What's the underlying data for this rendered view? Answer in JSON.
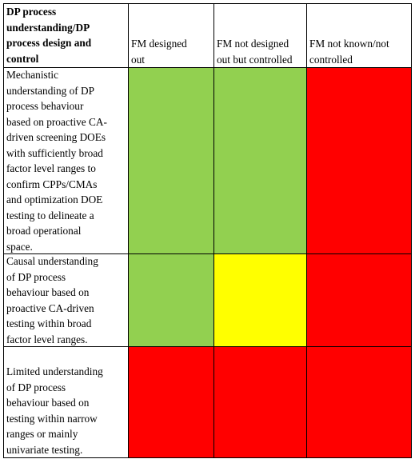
{
  "header": {
    "row_label": "DP process\nunderstanding/DP\nprocess design and\ncontrol",
    "columns": [
      "FM designed\nout",
      "FM not designed\nout but controlled",
      "FM not known/not\ncontrolled"
    ]
  },
  "rows": [
    {
      "label": "Mechanistic\nunderstanding of DP\nprocess behaviour\nbased on proactive CA-\ndriven screening DOEs\nwith sufficiently broad\nfactor level ranges to\nconfirm CPPs/CMAs\nand optimization DOE\ntesting to delineate a\nbroad operational\nspace.",
      "cells": [
        "green",
        "green",
        "red"
      ]
    },
    {
      "label": "Causal understanding\nof DP process\nbehaviour based on\nproactive CA-driven\ntesting within broad\nfactor level ranges.",
      "cells": [
        "green",
        "yellow",
        "red"
      ]
    },
    {
      "label": "Limited understanding\nof DP process\nbehaviour based on\ntesting within narrow\nranges or mainly\nunivariate testing.",
      "cells": [
        "red",
        "red",
        "red"
      ]
    }
  ],
  "colors": {
    "green": "#92D050",
    "yellow": "#FFFF00",
    "red": "#FF0000",
    "border": "#000000"
  }
}
